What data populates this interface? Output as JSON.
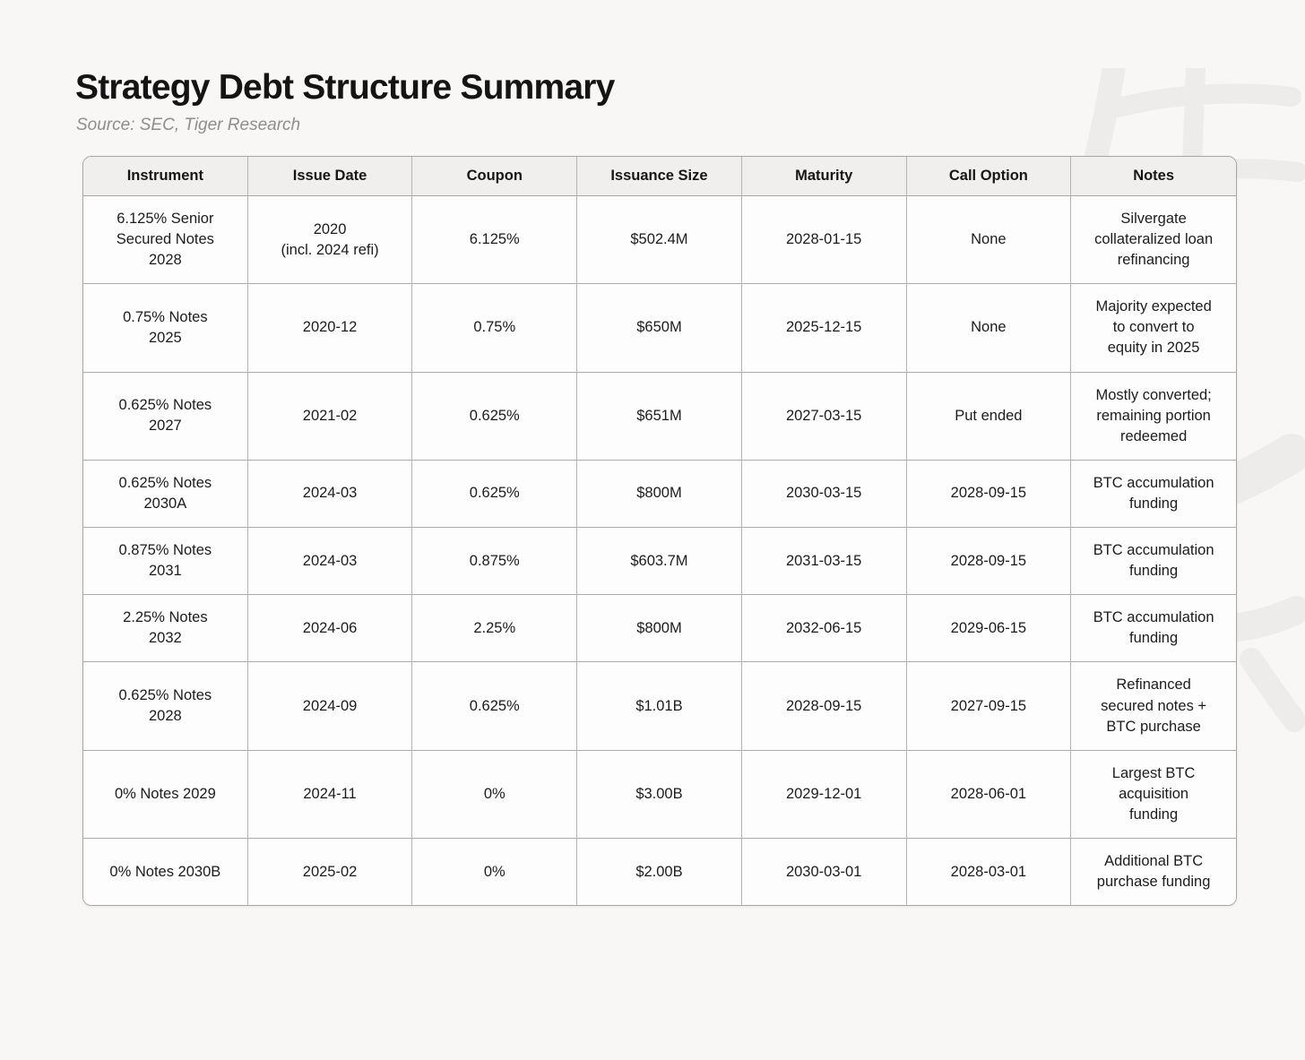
{
  "page": {
    "title": "Strategy Debt Structure Summary",
    "source": "Source: SEC, Tiger Research"
  },
  "chart_data": {
    "type": "table",
    "title": "Strategy Debt Structure Summary",
    "source": "Source: SEC, Tiger Research",
    "columns": [
      "Instrument",
      "Issue Date",
      "Coupon",
      "Issuance Size",
      "Maturity",
      "Call Option",
      "Notes"
    ],
    "rows": [
      [
        "6.125% Senior\nSecured Notes\n2028",
        "2020\n(incl. 2024 refi)",
        "6.125%",
        "$502.4M",
        "2028-01-15",
        "None",
        "Silvergate\ncollateralized loan\nrefinancing"
      ],
      [
        "0.75% Notes\n2025",
        "2020-12",
        "0.75%",
        "$650M",
        "2025-12-15",
        "None",
        "Majority expected\nto convert to\nequity in 2025"
      ],
      [
        "0.625% Notes\n2027",
        "2021-02",
        "0.625%",
        "$651M",
        "2027-03-15",
        "Put ended",
        "Mostly converted;\nremaining portion\nredeemed"
      ],
      [
        "0.625% Notes\n2030A",
        "2024-03",
        "0.625%",
        "$800M",
        "2030-03-15",
        "2028-09-15",
        "BTC accumulation\nfunding"
      ],
      [
        "0.875% Notes\n2031",
        "2024-03",
        "0.875%",
        "$603.7M",
        "2031-03-15",
        "2028-09-15",
        "BTC accumulation\nfunding"
      ],
      [
        "2.25% Notes\n2032",
        "2024-06",
        "2.25%",
        "$800M",
        "2032-06-15",
        "2029-06-15",
        "BTC accumulation\nfunding"
      ],
      [
        "0.625% Notes\n2028",
        "2024-09",
        "0.625%",
        "$1.01B",
        "2028-09-15",
        "2027-09-15",
        "Refinanced\nsecured notes +\nBTC purchase"
      ],
      [
        "0% Notes 2029",
        "2024-11",
        "0%",
        "$3.00B",
        "2029-12-01",
        "2028-06-01",
        "Largest BTC\nacquisition\nfunding"
      ],
      [
        "0% Notes 2030B",
        "2025-02",
        "0%",
        "$2.00B",
        "2030-03-01",
        "2028-03-01",
        "Additional BTC\npurchase funding"
      ]
    ]
  },
  "colors": {
    "page_background": "#f8f7f5",
    "header_background": "#f0efed",
    "cell_background": "#fdfdfd",
    "border": "#a6a6a6",
    "title_text": "#141414",
    "source_text": "#8e8e8e",
    "watermark": "#edecea"
  }
}
